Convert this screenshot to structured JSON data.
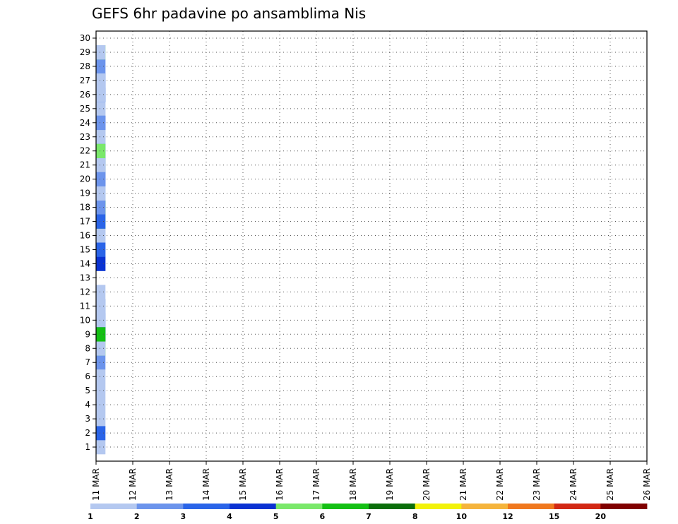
{
  "chart_data": {
    "type": "heatmap",
    "title": "GEFS 6hr padavine po ansamblima Nis",
    "x_ticks": [
      "11 MAR",
      "12 MAR",
      "13 MAR",
      "14 MAR",
      "15 MAR",
      "16 MAR",
      "17 MAR",
      "18 MAR",
      "19 MAR",
      "20 MAR",
      "21 MAR",
      "22 MAR",
      "23 MAR",
      "24 MAR",
      "25 MAR",
      "26 MAR"
    ],
    "y_ticks": [
      "1",
      "2",
      "3",
      "4",
      "5",
      "6",
      "7",
      "8",
      "9",
      "10",
      "11",
      "12",
      "13",
      "14",
      "15",
      "16",
      "17",
      "18",
      "19",
      "20",
      "21",
      "22",
      "23",
      "24",
      "25",
      "26",
      "27",
      "28",
      "29",
      "30"
    ],
    "steps_per_day": 4,
    "grid": true,
    "colorbar_labels": [
      "1",
      "2",
      "3",
      "4",
      "5",
      "6",
      "7",
      "8",
      "10",
      "12",
      "15",
      "20"
    ],
    "colors": [
      "#b4c8f0",
      "#6c94ec",
      "#2a64e8",
      "#0a32d2",
      "#7ae86a",
      "#14c014",
      "#0a6e0a",
      "#f2f20a",
      "#f5b43c",
      "#f0781e",
      "#d22814",
      "#800000"
    ],
    "level_0": "#ffffff",
    "cells": [
      [
        0,
        21,
        2
      ],
      [
        0,
        20,
        2
      ],
      [
        0,
        19,
        2
      ],
      [
        0,
        15,
        2
      ],
      [
        0,
        1,
        1
      ],
      [
        0,
        2,
        3
      ],
      [
        0,
        3,
        1
      ],
      [
        0,
        7,
        2
      ],
      [
        0,
        9,
        3
      ],
      [
        0,
        10,
        3
      ],
      [
        0,
        11,
        2
      ],
      [
        0,
        12,
        1
      ],
      [
        0,
        14,
        2
      ],
      [
        0,
        18,
        2
      ],
      [
        0,
        19,
        1
      ],
      [
        0,
        20,
        2
      ],
      [
        0,
        21,
        4
      ],
      [
        0,
        22,
        3
      ],
      [
        0,
        23,
        1
      ],
      [
        0,
        24,
        1
      ],
      [
        0,
        25,
        1
      ],
      [
        0,
        26,
        3
      ],
      [
        0,
        4,
        1
      ],
      [
        0,
        5,
        1
      ],
      [
        0,
        6,
        1
      ],
      [
        0,
        8,
        5
      ],
      [
        0,
        9,
        6
      ],
      [
        0,
        10,
        1
      ],
      [
        0,
        11,
        1
      ],
      [
        0,
        16,
        1
      ],
      [
        0,
        17,
        3
      ],
      [
        0,
        18,
        6
      ],
      [
        0,
        19,
        1
      ],
      [
        0,
        20,
        2
      ],
      [
        0,
        21,
        5
      ],
      [
        0,
        22,
        1
      ],
      [
        0,
        23,
        1
      ],
      [
        0,
        24,
        3
      ],
      [
        0,
        26,
        1
      ],
      [
        0,
        27,
        1
      ],
      [
        0,
        28,
        1
      ],
      [
        0,
        8,
        5
      ],
      [
        0,
        9,
        3
      ],
      [
        0,
        25,
        1
      ],
      [
        0,
        26,
        2
      ],
      [
        0,
        28,
        2
      ],
      [
        0,
        8,
        1
      ],
      [
        0,
        9,
        6
      ],
      [
        0,
        16,
        1
      ],
      [
        0,
        17,
        5
      ],
      [
        0,
        24,
        2
      ],
      [
        0,
        26,
        3
      ],
      [
        0,
        14,
        4
      ],
      [
        0,
        18,
        2
      ],
      [
        0,
        21,
        2
      ],
      [
        0,
        23,
        1
      ],
      [
        0,
        27,
        3
      ],
      [
        0,
        29,
        5
      ],
      [
        0,
        15,
        3
      ],
      [
        0,
        17,
        3
      ],
      [
        0,
        19,
        1
      ],
      [
        0,
        21,
        1
      ],
      [
        0,
        22,
        2
      ],
      [
        0,
        19,
        1
      ],
      [
        0,
        20,
        2
      ],
      [
        0,
        22,
        5
      ],
      [
        0,
        24,
        2
      ],
      [
        0,
        26,
        1
      ],
      [
        0,
        27,
        1
      ],
      [
        0,
        29,
        1
      ]
    ]
  }
}
